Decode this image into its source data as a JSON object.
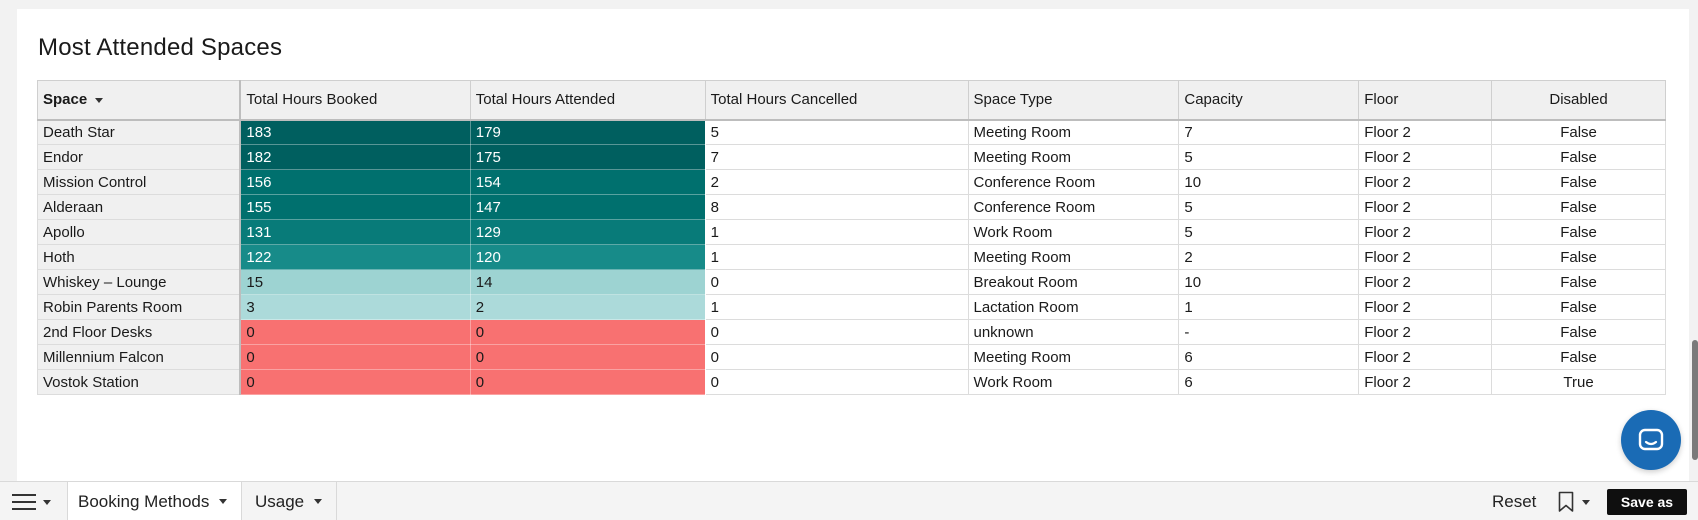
{
  "title": "Most Attended Spaces",
  "columns": [
    "Space",
    "Total Hours Booked",
    "Total Hours Attended",
    "Total Hours Cancelled",
    "Space Type",
    "Capacity",
    "Floor",
    "Disabled"
  ],
  "rows": [
    {
      "space": "Death Star",
      "booked": "183",
      "attended": "179",
      "cancelled": "5",
      "type": "Meeting Room",
      "capacity": "7",
      "floor": "Floor 2",
      "disabled": "False"
    },
    {
      "space": "Endor",
      "booked": "182",
      "attended": "175",
      "cancelled": "7",
      "type": "Meeting Room",
      "capacity": "5",
      "floor": "Floor 2",
      "disabled": "False"
    },
    {
      "space": "Mission Control",
      "booked": "156",
      "attended": "154",
      "cancelled": "2",
      "type": "Conference Room",
      "capacity": "10",
      "floor": "Floor 2",
      "disabled": "False"
    },
    {
      "space": "Alderaan",
      "booked": "155",
      "attended": "147",
      "cancelled": "8",
      "type": "Conference Room",
      "capacity": "5",
      "floor": "Floor 2",
      "disabled": "False"
    },
    {
      "space": "Apollo",
      "booked": "131",
      "attended": "129",
      "cancelled": "1",
      "type": "Work Room",
      "capacity": "5",
      "floor": "Floor 2",
      "disabled": "False"
    },
    {
      "space": "Hoth",
      "booked": "122",
      "attended": "120",
      "cancelled": "1",
      "type": "Meeting Room",
      "capacity": "2",
      "floor": "Floor 2",
      "disabled": "False"
    },
    {
      "space": "Whiskey – Lounge",
      "booked": "15",
      "attended": "14",
      "cancelled": "0",
      "type": "Breakout Room",
      "capacity": "10",
      "floor": "Floor 2",
      "disabled": "False"
    },
    {
      "space": "Robin Parents Room",
      "booked": "3",
      "attended": "2",
      "cancelled": "1",
      "type": "Lactation Room",
      "capacity": "1",
      "floor": "Floor 2",
      "disabled": "False"
    },
    {
      "space": "2nd Floor Desks",
      "booked": "0",
      "attended": "0",
      "cancelled": "0",
      "type": "unknown",
      "capacity": "-",
      "floor": "Floor 2",
      "disabled": "False"
    },
    {
      "space": "Millennium Falcon",
      "booked": "0",
      "attended": "0",
      "cancelled": "0",
      "type": "Meeting Room",
      "capacity": "6",
      "floor": "Floor 2",
      "disabled": "False"
    },
    {
      "space": "Vostok Station",
      "booked": "0",
      "attended": "0",
      "cancelled": "0",
      "type": "Work Room",
      "capacity": "6",
      "floor": "Floor 2",
      "disabled": "True"
    }
  ],
  "heat_colors": {
    "very_high": "#005f5f",
    "high": "#00706e",
    "mid": "#087b79",
    "midlow": "#178b89",
    "low": "#9dd3d2",
    "lowest": "#acdada",
    "zero": "#f87171"
  },
  "bottombar": {
    "menu_icon": "hamburger-icon",
    "tabs": [
      {
        "label": "Booking Methods"
      },
      {
        "label": "Usage"
      }
    ],
    "reset_label": "Reset",
    "bookmark_icon": "bookmark-icon",
    "save_as_label": "Save as"
  },
  "chat_icon": "chat-icon",
  "accent": "#1a6bb5"
}
